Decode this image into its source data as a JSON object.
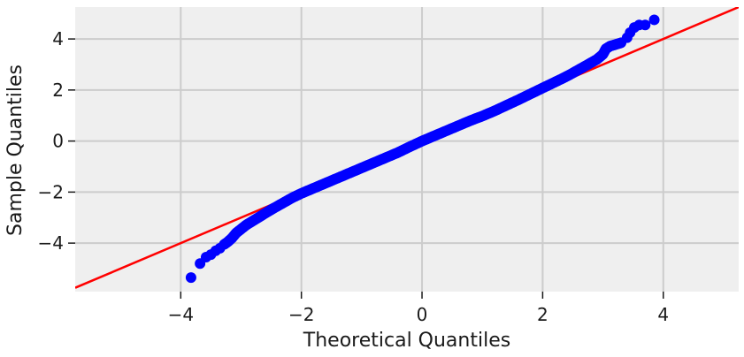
{
  "chart_data": {
    "type": "scatter",
    "title": "",
    "xlabel": "Theoretical Quantiles",
    "ylabel": "Sample Quantiles",
    "xlim": [
      -5.75,
      5.25
    ],
    "ylim": [
      -5.9,
      5.25
    ],
    "xticks": [
      -4,
      -2,
      0,
      2,
      4
    ],
    "yticks": [
      -4,
      -2,
      0,
      2,
      4
    ],
    "xtick_labels": [
      "−4",
      "−2",
      "0",
      "2",
      "4"
    ],
    "ytick_labels": [
      "−4",
      "−2",
      "0",
      "2",
      "4"
    ],
    "grid": true,
    "colors": {
      "background": "#efefef",
      "grid": "#cccccc",
      "points": "#0000ff",
      "reference_line": "#ff0000"
    },
    "reference_line": {
      "slope": 1,
      "intercept": 0
    },
    "series": [
      {
        "type": "scatter",
        "description_points": [
          [
            -3.83,
            -5.35
          ],
          [
            -3.68,
            -4.8
          ],
          [
            -3.58,
            -4.55
          ],
          [
            -3.5,
            -4.45
          ],
          [
            -3.42,
            -4.3
          ],
          [
            -3.35,
            -4.2
          ],
          [
            -3.28,
            -4.05
          ],
          [
            -3.22,
            -3.95
          ],
          [
            -3.15,
            -3.8
          ],
          [
            -3.08,
            -3.6
          ],
          [
            -3.0,
            -3.45
          ],
          [
            -2.92,
            -3.3
          ],
          [
            -2.82,
            -3.15
          ],
          [
            -2.7,
            -2.98
          ],
          [
            -2.58,
            -2.8
          ],
          [
            -2.45,
            -2.62
          ],
          [
            -2.3,
            -2.42
          ],
          [
            -2.15,
            -2.22
          ],
          [
            -2.0,
            -2.05
          ],
          [
            -1.8,
            -1.85
          ],
          [
            -1.6,
            -1.65
          ],
          [
            -1.4,
            -1.45
          ],
          [
            -1.2,
            -1.25
          ],
          [
            -1.0,
            -1.05
          ],
          [
            -0.8,
            -0.85
          ],
          [
            -0.6,
            -0.65
          ],
          [
            -0.4,
            -0.45
          ],
          [
            -0.2,
            -0.22
          ],
          [
            0.0,
            0.0
          ],
          [
            0.2,
            0.2
          ],
          [
            0.4,
            0.4
          ],
          [
            0.6,
            0.6
          ],
          [
            0.8,
            0.8
          ],
          [
            1.0,
            0.98
          ],
          [
            1.2,
            1.18
          ],
          [
            1.4,
            1.4
          ],
          [
            1.6,
            1.62
          ],
          [
            1.8,
            1.85
          ],
          [
            2.0,
            2.08
          ],
          [
            2.15,
            2.25
          ],
          [
            2.3,
            2.42
          ],
          [
            2.45,
            2.6
          ],
          [
            2.6,
            2.8
          ],
          [
            2.75,
            3.0
          ],
          [
            2.9,
            3.2
          ],
          [
            3.0,
            3.4
          ],
          [
            3.05,
            3.62
          ],
          [
            3.12,
            3.72
          ],
          [
            3.3,
            3.85
          ],
          [
            3.4,
            4.05
          ],
          [
            3.45,
            4.25
          ],
          [
            3.52,
            4.45
          ],
          [
            3.6,
            4.55
          ],
          [
            3.7,
            4.55
          ],
          [
            3.85,
            4.75
          ]
        ]
      }
    ]
  }
}
